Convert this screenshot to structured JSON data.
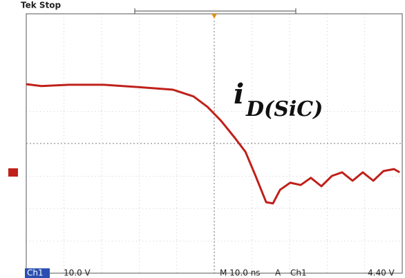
{
  "chart_data": {
    "type": "line",
    "title": "Tek Stop",
    "annotation": {
      "symbol": "i",
      "subscript": "D(SiC)"
    },
    "status": [
      "Ch1",
      "10.0 V",
      "M 10.0 ns",
      "A",
      "Ch1",
      "4.40 V"
    ],
    "x": [
      0,
      0.4,
      1.14,
      2.06,
      2.98,
      3.9,
      4.45,
      4.82,
      5.18,
      5.55,
      5.83,
      6.1,
      6.38,
      6.56,
      6.75,
      7.02,
      7.3,
      7.57,
      7.85,
      8.13,
      8.4,
      8.68,
      8.95,
      9.23,
      9.5,
      9.78,
      9.93
    ],
    "series": [
      {
        "color": "#c0201a",
        "values": [
          1.83,
          1.77,
          1.81,
          1.81,
          1.74,
          1.66,
          1.45,
          1.13,
          0.7,
          0.17,
          -0.26,
          -1.0,
          -1.81,
          -1.85,
          -1.43,
          -1.21,
          -1.28,
          -1.06,
          -1.32,
          -1.0,
          -0.89,
          -1.15,
          -0.89,
          -1.15,
          -0.85,
          -0.79,
          -0.89
        ]
      }
    ],
    "xlim": [
      0,
      10
    ],
    "ylim": [
      -4,
      4
    ]
  }
}
